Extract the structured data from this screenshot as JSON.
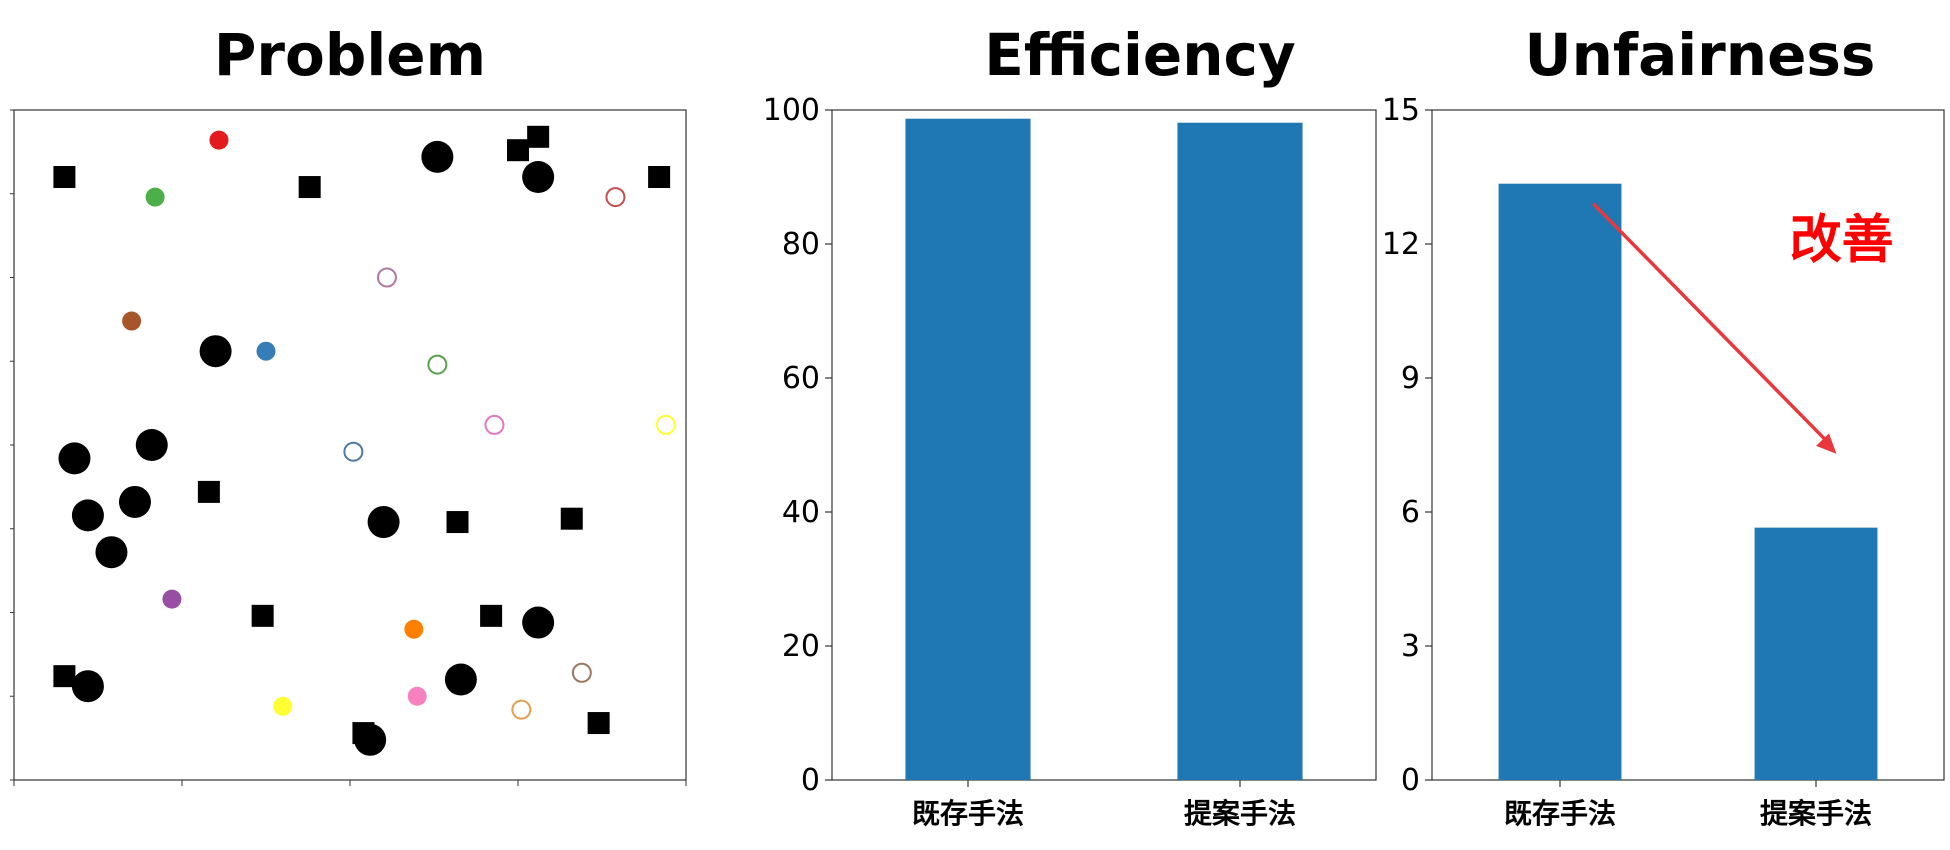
{
  "chart_data": [
    {
      "type": "scatter",
      "title": "Problem",
      "xlim": [
        0,
        10
      ],
      "ylim": [
        0,
        10
      ],
      "obstacles_square": [
        [
          0.75,
          9.0
        ],
        [
          4.4,
          8.85
        ],
        [
          7.5,
          9.4
        ],
        [
          7.8,
          9.6
        ],
        [
          9.6,
          9.0
        ],
        [
          2.9,
          4.3
        ],
        [
          6.6,
          3.85
        ],
        [
          8.3,
          3.9
        ],
        [
          3.7,
          2.45
        ],
        [
          7.1,
          2.45
        ],
        [
          0.75,
          1.55
        ],
        [
          5.2,
          0.7
        ],
        [
          8.7,
          0.85
        ]
      ],
      "obstacles_circle": [
        [
          6.3,
          9.3
        ],
        [
          7.8,
          9.0
        ],
        [
          3.0,
          6.4
        ],
        [
          2.05,
          5.0
        ],
        [
          0.9,
          4.8
        ],
        [
          1.1,
          3.95
        ],
        [
          1.8,
          4.15
        ],
        [
          1.45,
          3.4
        ],
        [
          5.5,
          3.85
        ],
        [
          7.8,
          2.35
        ],
        [
          1.1,
          1.4
        ],
        [
          6.65,
          1.5
        ],
        [
          5.3,
          0.6
        ]
      ],
      "agents": [
        {
          "x": 3.05,
          "y": 9.55,
          "color": "#e41a1c"
        },
        {
          "x": 2.1,
          "y": 8.7,
          "color": "#4daf4a"
        },
        {
          "x": 1.75,
          "y": 6.85,
          "color": "#a65628"
        },
        {
          "x": 3.75,
          "y": 6.4,
          "color": "#377eb8"
        },
        {
          "x": 2.35,
          "y": 2.7,
          "color": "#984ea3"
        },
        {
          "x": 5.95,
          "y": 2.25,
          "color": "#ff7f00"
        },
        {
          "x": 4.0,
          "y": 1.1,
          "color": "#ffff33"
        },
        {
          "x": 6.0,
          "y": 1.25,
          "color": "#f781bf"
        }
      ],
      "goals": [
        {
          "x": 8.95,
          "y": 8.7,
          "color": "#c44e52"
        },
        {
          "x": 5.55,
          "y": 7.5,
          "color": "#b07aa1"
        },
        {
          "x": 6.3,
          "y": 6.2,
          "color": "#59a14f"
        },
        {
          "x": 7.15,
          "y": 5.3,
          "color": "#e377c2"
        },
        {
          "x": 9.7,
          "y": 5.3,
          "color": "#ffff33"
        },
        {
          "x": 5.05,
          "y": 4.9,
          "color": "#4e79a7"
        },
        {
          "x": 8.45,
          "y": 1.6,
          "color": "#9c755f"
        },
        {
          "x": 7.55,
          "y": 1.05,
          "color": "#e0a050"
        }
      ]
    },
    {
      "type": "bar",
      "title": "Efficiency",
      "categories": [
        "既存手法",
        "提案手法"
      ],
      "values": [
        98.7,
        98.1
      ],
      "ylim": [
        0,
        100
      ],
      "yticks": [
        0,
        20,
        40,
        60,
        80,
        100
      ],
      "color": "#1f77b4"
    },
    {
      "type": "bar",
      "title": "Unfairness",
      "categories": [
        "既存手法",
        "提案手法"
      ],
      "values": [
        13.35,
        5.65
      ],
      "ylim": [
        0,
        15
      ],
      "yticks": [
        0,
        3,
        6,
        9,
        12,
        15
      ],
      "color": "#1f77b4",
      "annotation": {
        "text": "改善",
        "color": "#ff0000",
        "arrow_color": "#e8383d"
      }
    }
  ]
}
